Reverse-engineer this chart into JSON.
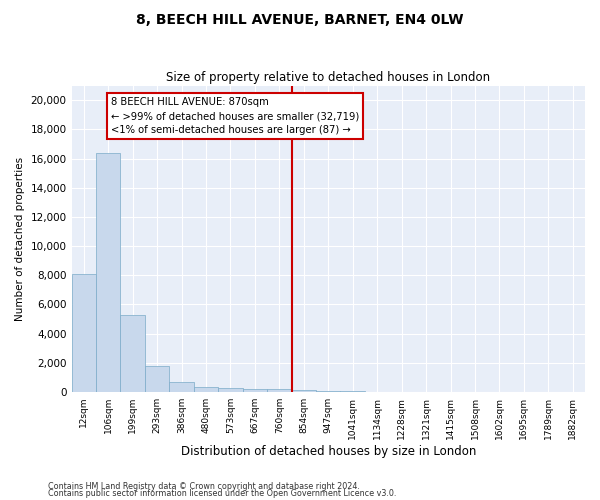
{
  "title": "8, BEECH HILL AVENUE, BARNET, EN4 0LW",
  "subtitle": "Size of property relative to detached houses in London",
  "xlabel": "Distribution of detached houses by size in London",
  "ylabel": "Number of detached properties",
  "bar_color": "#c8d8ec",
  "bar_edge_color": "#7aaac8",
  "bg_color": "#e8eef8",
  "grid_color": "#ffffff",
  "categories": [
    "12sqm",
    "106sqm",
    "199sqm",
    "293sqm",
    "386sqm",
    "480sqm",
    "573sqm",
    "667sqm",
    "760sqm",
    "854sqm",
    "947sqm",
    "1041sqm",
    "1134sqm",
    "1228sqm",
    "1321sqm",
    "1415sqm",
    "1508sqm",
    "1602sqm",
    "1695sqm",
    "1789sqm",
    "1882sqm"
  ],
  "bar_heights": [
    8100,
    16400,
    5300,
    1750,
    700,
    350,
    270,
    230,
    170,
    120,
    60,
    40,
    30,
    20,
    15,
    10,
    7,
    5,
    4,
    3,
    2
  ],
  "vline_x": 8.5,
  "vline_color": "#cc0000",
  "ylim": [
    0,
    21000
  ],
  "yticks": [
    0,
    2000,
    4000,
    6000,
    8000,
    10000,
    12000,
    14000,
    16000,
    18000,
    20000
  ],
  "annotation_line1": "8 BEECH HILL AVENUE: 870sqm",
  "annotation_line2": "← >99% of detached houses are smaller (32,719)",
  "annotation_line3": "<1% of semi-detached houses are larger (87) →",
  "footnote1": "Contains HM Land Registry data © Crown copyright and database right 2024.",
  "footnote2": "Contains public sector information licensed under the Open Government Licence v3.0."
}
